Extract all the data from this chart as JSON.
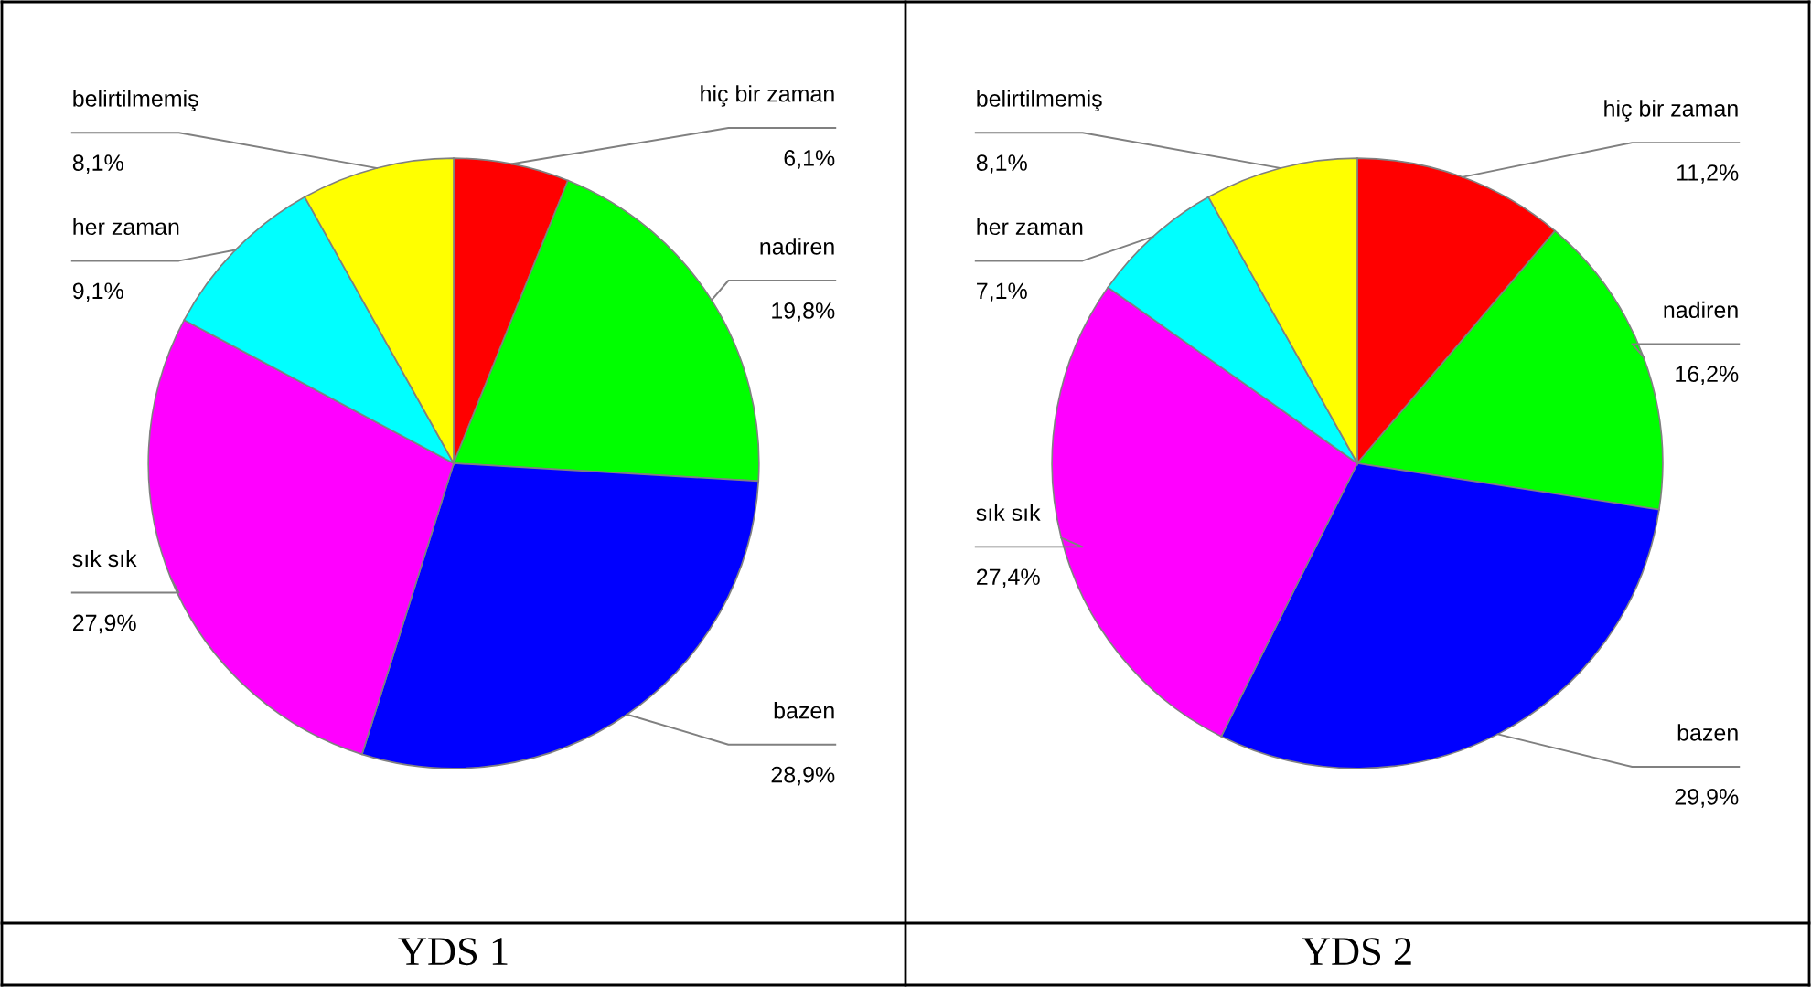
{
  "chart_data": [
    {
      "type": "pie",
      "title": "YDS 1",
      "categories": [
        "hiç bir zaman",
        "nadiren",
        "bazen",
        "sık sık",
        "her zaman",
        "belirtilmemiş"
      ],
      "values": [
        6.1,
        19.8,
        28.9,
        27.9,
        9.1,
        8.1
      ],
      "value_labels": [
        "6,1%",
        "19,8%",
        "28,9%",
        "27,9%",
        "9,1%",
        "8,1%"
      ],
      "colors": [
        "#ff0000",
        "#00ff00",
        "#0000ff",
        "#ff00ff",
        "#00ffff",
        "#ffff00"
      ]
    },
    {
      "type": "pie",
      "title": "YDS 2",
      "categories": [
        "hiç bir zaman",
        "nadiren",
        "bazen",
        "sık sık",
        "her zaman",
        "belirtilmemiş"
      ],
      "values": [
        11.2,
        16.2,
        29.9,
        27.4,
        7.1,
        8.1
      ],
      "value_labels": [
        "11,2%",
        "16,2%",
        "29,9%",
        "27,4%",
        "7,1%",
        "8,1%"
      ],
      "colors": [
        "#ff0000",
        "#00ff00",
        "#0000ff",
        "#ff00ff",
        "#00ffff",
        "#ffff00"
      ]
    }
  ]
}
